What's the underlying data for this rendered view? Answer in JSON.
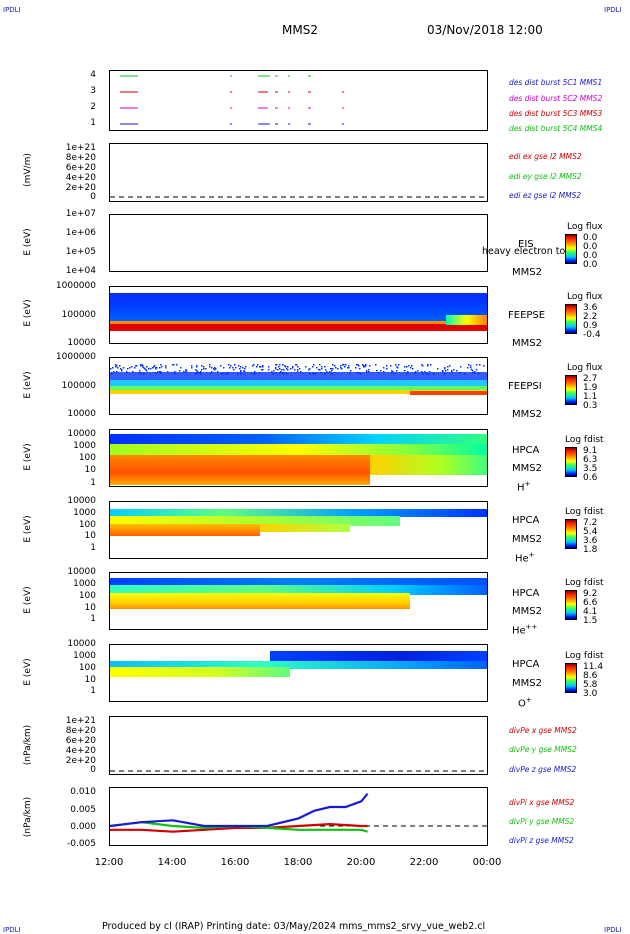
{
  "corners": {
    "label": "IPDLI"
  },
  "header": {
    "title": "MMS2",
    "datetime": "03/Nov/2018 12:00"
  },
  "footer": {
    "text": "Produced by cl (IRAP)   Printing date: 03/May/2024   mms_mms2_srvy_vue_web2.cl"
  },
  "x_axis": {
    "ticks": [
      "12:00",
      "14:00",
      "16:00",
      "18:00",
      "20:00",
      "22:00",
      "00:00"
    ]
  },
  "panels": {
    "burst": {
      "yticks": [
        "4",
        "3",
        "2",
        "1"
      ],
      "labels": [
        {
          "text": "des dist burst 5C1 MMS1",
          "color": "#1a1ad0"
        },
        {
          "text": "des dist burst 5C2 MMS2",
          "color": "#d000d0"
        },
        {
          "text": "des dist burst 5C3 MMS3",
          "color": "#d00000"
        },
        {
          "text": "des dist burst 5C4 MMS4",
          "color": "#10c010"
        }
      ]
    },
    "edi": {
      "ylabel": "(mV/m)",
      "yticks": [
        "1e+21",
        "8e+20",
        "6e+20",
        "4e+20",
        "2e+20",
        "0"
      ],
      "labels": [
        {
          "text": "edi ex gse l2 MMS2",
          "color": "#d00000"
        },
        {
          "text": "edi ey gse l2 MMS2",
          "color": "#10c010"
        },
        {
          "text": "edi ez gse l2 MMS2",
          "color": "#1a1ad0"
        }
      ]
    },
    "eis": {
      "ylabel": "E (eV)",
      "yticks": [
        "1e+07",
        "1e+06",
        "1e+05",
        "1e+04"
      ],
      "inst": "EIS",
      "overlay": "heavy electron to",
      "sc": "MMS2",
      "cb_title": "Log flux",
      "cb_vals": [
        "0.0",
        "0.0",
        "0.0",
        "0.0"
      ]
    },
    "feepse": {
      "ylabel": "E (eV)",
      "yticks": [
        "1000000",
        "100000",
        "10000"
      ],
      "inst": "FEEPSE",
      "sc": "MMS2",
      "cb_title": "Log flux",
      "cb_vals": [
        "3.6",
        "2.2",
        "0.9",
        "-0.4"
      ]
    },
    "feepsi": {
      "ylabel": "E (eV)",
      "yticks": [
        "1000000",
        "100000",
        "10000"
      ],
      "inst": "FEEPSI",
      "sc": "MMS2",
      "cb_title": "Log flux",
      "cb_vals": [
        "2.7",
        "1.9",
        "1.1",
        "0.3"
      ]
    },
    "hpca_h": {
      "ylabel": "E (eV)",
      "yticks": [
        "10000",
        "1000",
        "100",
        "10",
        "1"
      ],
      "inst": "HPCA",
      "sc": "MMS2",
      "species": "H",
      "species_charge": "+",
      "cb_title": "Log fdist",
      "cb_vals": [
        "9.1",
        "6.3",
        "3.5",
        "0.6"
      ]
    },
    "hpca_he": {
      "ylabel": "E (eV)",
      "yticks": [
        "10000",
        "1000",
        "100",
        "10",
        "1"
      ],
      "inst": "HPCA",
      "sc": "MMS2",
      "species": "He",
      "species_charge": "+",
      "cb_title": "Log fdist",
      "cb_vals": [
        "7.2",
        "5.4",
        "3.6",
        "1.8"
      ]
    },
    "hpca_he2": {
      "ylabel": "E (eV)",
      "yticks": [
        "10000",
        "1000",
        "100",
        "10",
        "1"
      ],
      "inst": "HPCA",
      "sc": "MMS2",
      "species": "He",
      "species_charge": "++",
      "cb_title": "Log fdist",
      "cb_vals": [
        "9.2",
        "6.6",
        "4.1",
        "1.5"
      ]
    },
    "hpca_o": {
      "ylabel": "E (eV)",
      "yticks": [
        "10000",
        "1000",
        "100",
        "10",
        "1"
      ],
      "inst": "HPCA",
      "sc": "MMS2",
      "species": "O",
      "species_charge": "+",
      "cb_title": "Log fdist",
      "cb_vals": [
        "11.4",
        "8.6",
        "5.8",
        "3.0"
      ]
    },
    "divpe": {
      "ylabel": "(nPa/km)",
      "yticks": [
        "1e+21",
        "8e+20",
        "6e+20",
        "4e+20",
        "2e+20",
        "0"
      ],
      "labels": [
        {
          "text": "divPe x gse MMS2",
          "color": "#d00000"
        },
        {
          "text": "divPe y gse MMS2",
          "color": "#10c010"
        },
        {
          "text": "divPe z gse MMS2",
          "color": "#1a1ad0"
        }
      ]
    },
    "divpi": {
      "ylabel": "(nPa/km)",
      "yticks": [
        "0.010",
        "0.005",
        "0.000",
        "-0.005"
      ],
      "labels": [
        {
          "text": "divPi x gse MMS2",
          "color": "#d00000"
        },
        {
          "text": "divPi y gse MMS2",
          "color": "#10c010"
        },
        {
          "text": "divPi z gse MMS2",
          "color": "#1a1ad0"
        }
      ]
    }
  },
  "chart_data": {
    "type": "line",
    "title": "MMS2",
    "x_range": [
      "12:00",
      "00:00"
    ],
    "series": [
      {
        "name": "divPi x gse MMS2",
        "x_hours": [
          12,
          13,
          14,
          15,
          16,
          17,
          18,
          19,
          20,
          20.2
        ],
        "values": [
          -0.001,
          -0.001,
          -0.0015,
          -0.001,
          -0.0005,
          -0.0005,
          0.0,
          0.0005,
          0.0,
          0.0
        ]
      },
      {
        "name": "divPi y gse MMS2",
        "x_hours": [
          12,
          13,
          14,
          15,
          16,
          17,
          18,
          19,
          20,
          20.2
        ],
        "values": [
          0.0,
          0.001,
          0.0,
          -0.0005,
          0.0,
          -0.0005,
          -0.001,
          -0.001,
          -0.001,
          -0.0015
        ]
      },
      {
        "name": "divPi z gse MMS2",
        "x_hours": [
          12,
          13,
          14,
          15,
          16,
          17,
          18,
          18.5,
          19,
          19.5,
          20,
          20.2
        ],
        "values": [
          0.0,
          0.001,
          0.0015,
          0.0,
          0.0,
          0.0,
          0.002,
          0.004,
          0.005,
          0.005,
          0.0065,
          0.0085
        ]
      }
    ],
    "ylim": [
      -0.005,
      0.01
    ]
  }
}
